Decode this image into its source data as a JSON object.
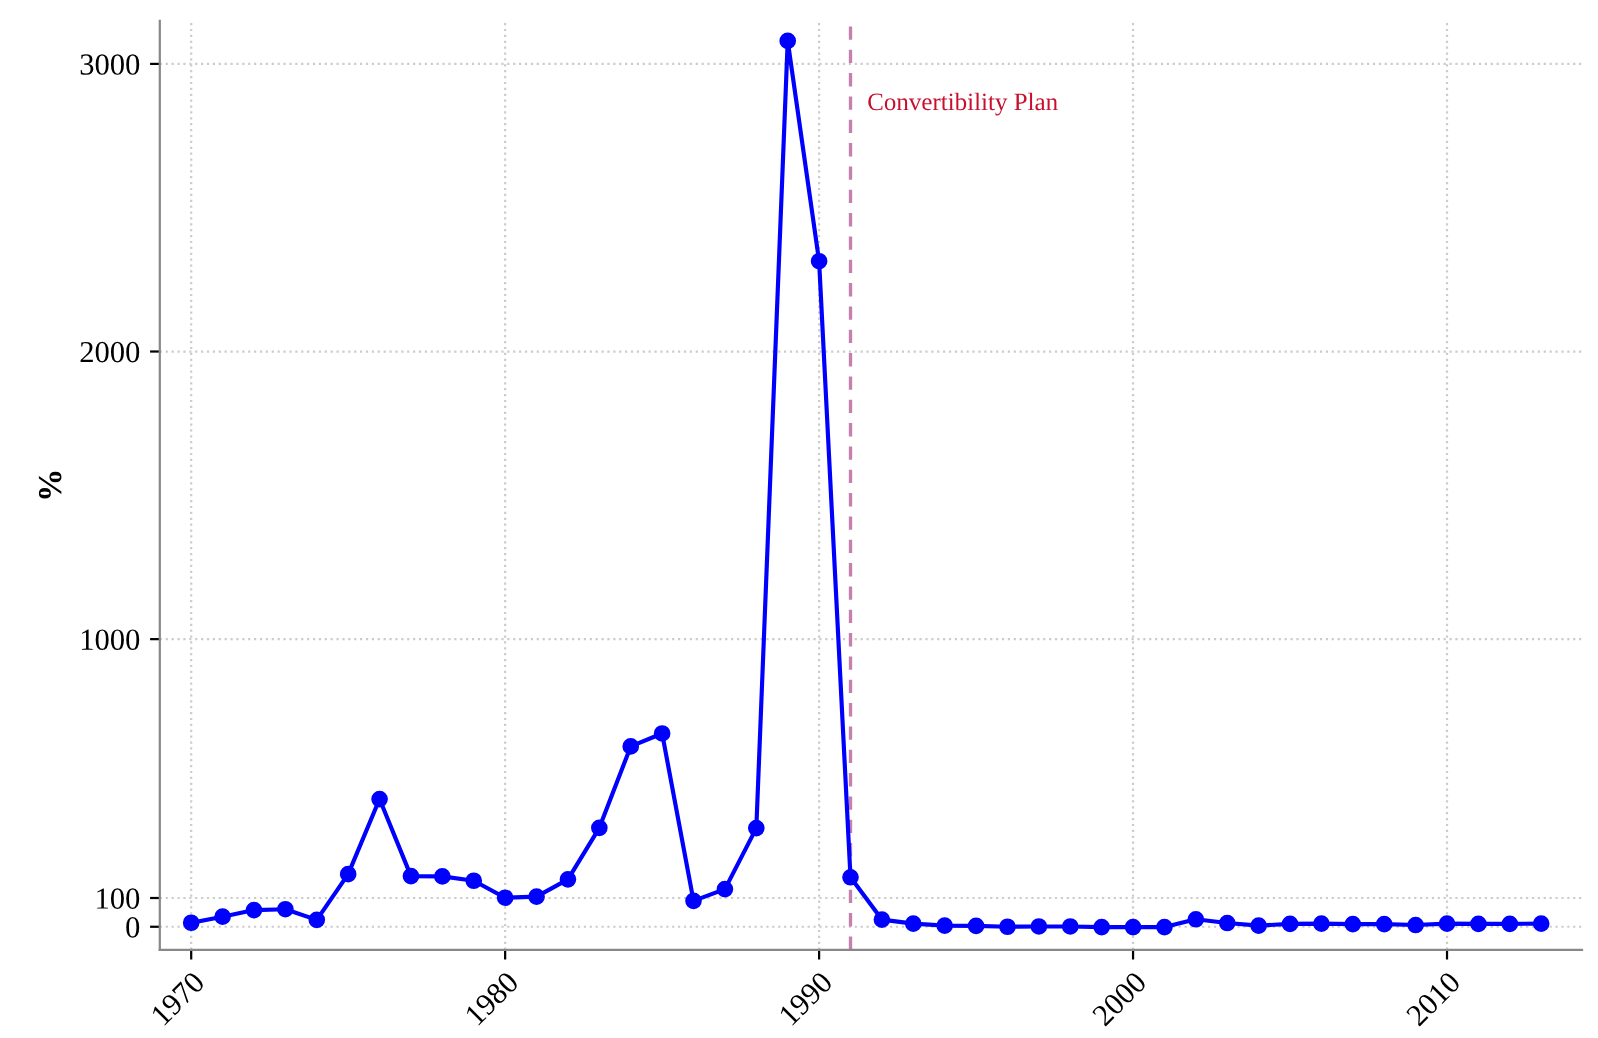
{
  "chart_data": {
    "type": "line",
    "ylabel": "%",
    "x": [
      1970,
      1971,
      1972,
      1973,
      1974,
      1975,
      1976,
      1977,
      1978,
      1979,
      1980,
      1981,
      1982,
      1983,
      1984,
      1985,
      1986,
      1987,
      1988,
      1989,
      1990,
      1991,
      1992,
      1993,
      1994,
      1995,
      1996,
      1997,
      1998,
      1999,
      2000,
      2001,
      2002,
      2003,
      2004,
      2005,
      2006,
      2007,
      2008,
      2009,
      2010,
      2011,
      2012,
      2013
    ],
    "series": [
      {
        "color": "#0000ff",
        "values": [
          14,
          35,
          58,
          61,
          24,
          183,
          444,
          176,
          175,
          160,
          101,
          105,
          165,
          344,
          627,
          672,
          90,
          131,
          343,
          3080,
          2314,
          172,
          25,
          11,
          4,
          3,
          0,
          1,
          1,
          -1,
          -1,
          -1,
          26,
          13,
          4,
          10,
          11,
          9,
          9,
          6,
          11,
          10,
          10,
          11
        ]
      }
    ],
    "xlim": [
      1969,
      2014.3
    ],
    "ylim": [
      -80,
      3150
    ],
    "xticks": [
      1970,
      1980,
      1990,
      2000,
      2010
    ],
    "yticks": [
      0,
      100,
      1000,
      2000,
      3000
    ],
    "grid": true,
    "marker": "circle",
    "line_style": "solid",
    "ref_lines": [
      {
        "axis": "x",
        "value": 1991,
        "label": "Convertibility Plan",
        "color": "#c77fae",
        "line_style": "dashed"
      }
    ]
  }
}
